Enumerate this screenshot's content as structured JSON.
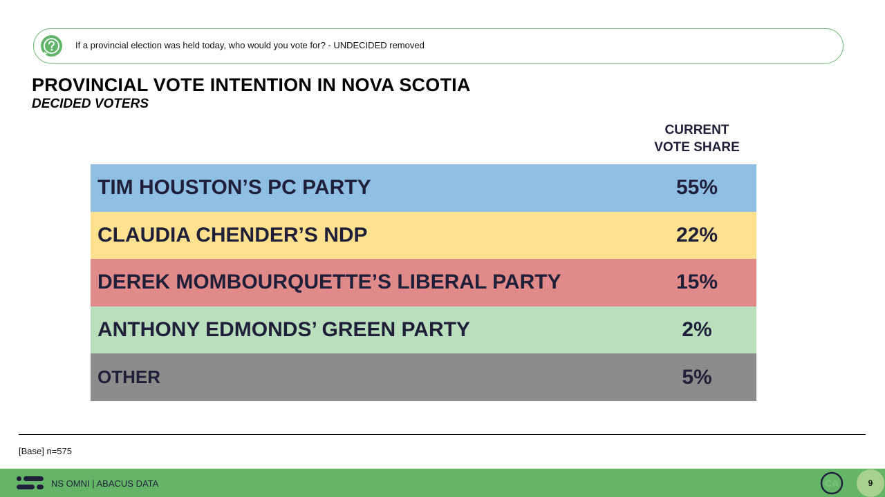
{
  "question": {
    "icon": "question-circle-icon",
    "text": "If a provincial election was held today, who would you vote for? - UNDECIDED removed"
  },
  "title": "PROVINCIAL VOTE INTENTION IN NOVA SCOTIA",
  "subtitle": "DECIDED VOTERS",
  "column_header": {
    "line1": "CURRENT",
    "line2": "VOTE SHARE"
  },
  "rows": [
    {
      "label": "TIM HOUSTON’S PC PARTY",
      "value": "55%",
      "color": "#8fbfe2"
    },
    {
      "label": "CLAUDIA CHENDER’S NDP",
      "value": "22%",
      "color": "#fde18e"
    },
    {
      "label": "DEREK MOMBOURQUETTE’S LIBERAL PARTY",
      "value": "15%",
      "color": "#e08a89"
    },
    {
      "label": "ANTHONY EDMONDS’ GREEN PARTY",
      "value": "2%",
      "color": "#b9dfbd"
    },
    {
      "label": "OTHER",
      "value": "5%",
      "color": "#8c8c8c"
    }
  ],
  "base_note": "[Base] n=575",
  "footer": {
    "logo_icon": "abacus-logo-icon",
    "text": "NS OMNI  |  ABACUS DATA",
    "ca_logo": "CA",
    "page_number": "9",
    "color": "#64b567"
  }
}
